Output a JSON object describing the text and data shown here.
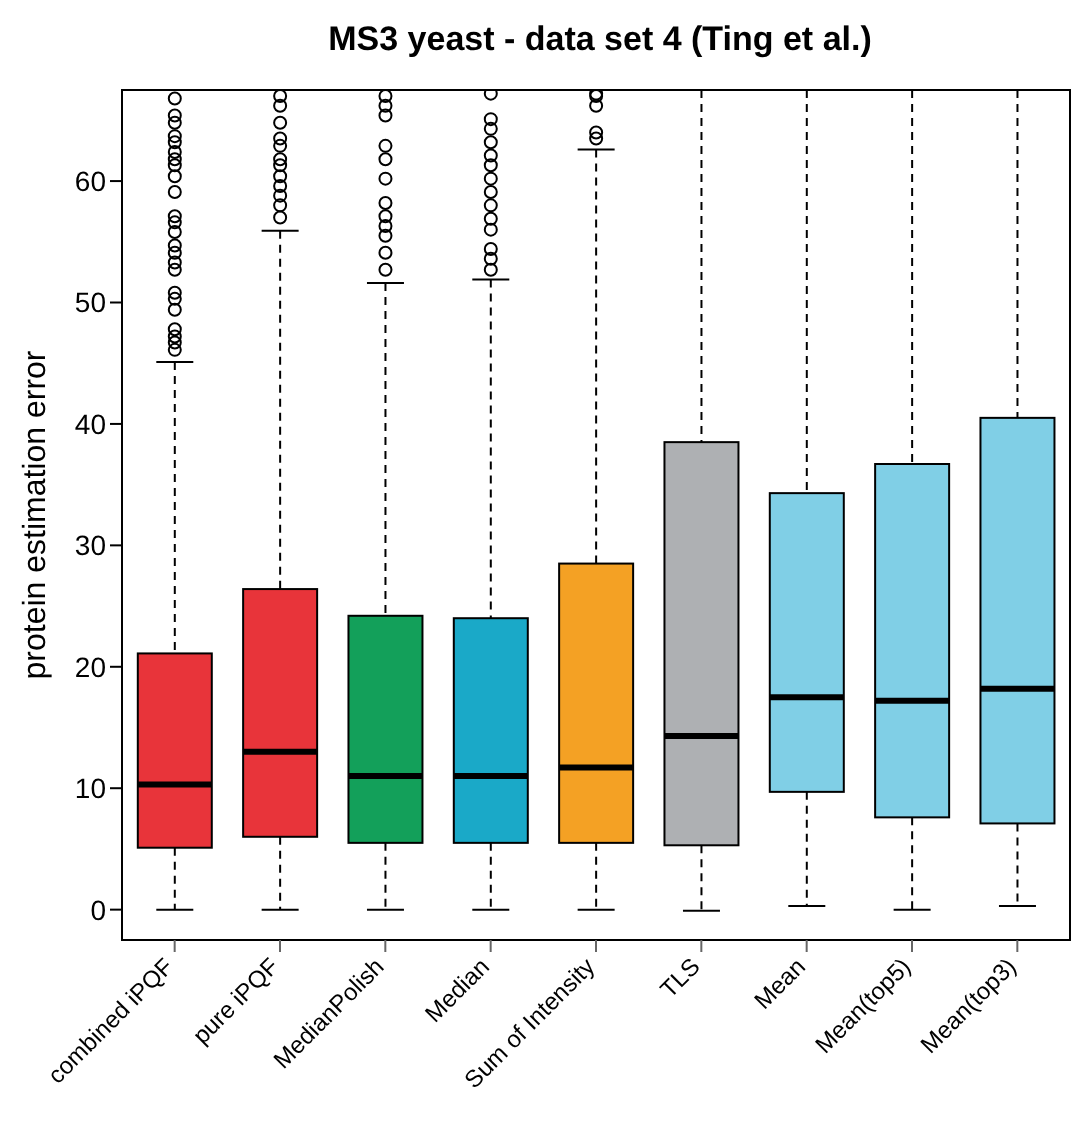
{
  "chart_data": {
    "type": "box",
    "title": "MS3 yeast - data set 4 (Ting et al.)",
    "ylabel": "protein estimation error",
    "categories": [
      "combined iPQF",
      "pure iPQF",
      "MedianPolish",
      "Median",
      "Sum of Intensity",
      "TLS",
      "Mean",
      "Mean(top5)",
      "Mean(top3)"
    ],
    "colors": [
      "#e8343a",
      "#e8343a",
      "#13a05a",
      "#1aa9c8",
      "#f4a124",
      "#aeb0b3",
      "#80cfe6",
      "#80cfe6",
      "#80cfe6"
    ],
    "boxes": [
      {
        "low": 0,
        "q1": 5.1,
        "median": 10.3,
        "q3": 21.1,
        "high": 45.1,
        "outliers": [
          46.1,
          46.7,
          47.2,
          47.8,
          49.4,
          50.3,
          50.8,
          52.7,
          53.3,
          54.1,
          54.7,
          55.8,
          56.6,
          57.1,
          59.1,
          60.4,
          61.3,
          61.8,
          62.4,
          63.2,
          63.7,
          64.8,
          65.4,
          66.8
        ]
      },
      {
        "low": 0,
        "q1": 6,
        "median": 13,
        "q3": 26.4,
        "high": 55.9,
        "outliers": [
          57,
          58,
          58.8,
          59.6,
          60.4,
          61.3,
          61.8,
          62.9,
          63.5,
          64.8,
          66.2,
          67
        ]
      },
      {
        "low": 0,
        "q1": 5.5,
        "median": 11,
        "q3": 24.2,
        "high": 51.6,
        "outliers": [
          52.7,
          54.1,
          55.5,
          56.3,
          57.1,
          58.2,
          60.2,
          61.8,
          62.9,
          65.4,
          66.2,
          67
        ]
      },
      {
        "low": 0,
        "q1": 5.5,
        "median": 11,
        "q3": 24,
        "high": 51.9,
        "outliers": [
          52.7,
          53.6,
          54.4,
          56,
          56.9,
          58,
          59.1,
          60.2,
          61.3,
          62.1,
          63.2,
          64.3,
          65.1,
          67.2
        ]
      },
      {
        "low": 0,
        "q1": 5.5,
        "median": 11.7,
        "q3": 28.5,
        "high": 62.6,
        "outliers": [
          63.5,
          64,
          66.2,
          67,
          67.2
        ]
      },
      {
        "low": -0.1,
        "q1": 5.3,
        "median": 14.3,
        "q3": 38.5,
        "high": 67.5
      },
      {
        "low": 0.3,
        "q1": 9.7,
        "median": 17.5,
        "q3": 34.3,
        "high": 67.5
      },
      {
        "low": 0,
        "q1": 7.6,
        "median": 17.2,
        "q3": 36.7,
        "high": 67.5
      },
      {
        "low": 0.3,
        "q1": 7.1,
        "median": 18.2,
        "q3": 40.5,
        "high": 67.5
      }
    ],
    "ylim": [
      -2.5,
      67.5
    ],
    "yticks": [
      0,
      10,
      20,
      30,
      40,
      50,
      60
    ]
  }
}
